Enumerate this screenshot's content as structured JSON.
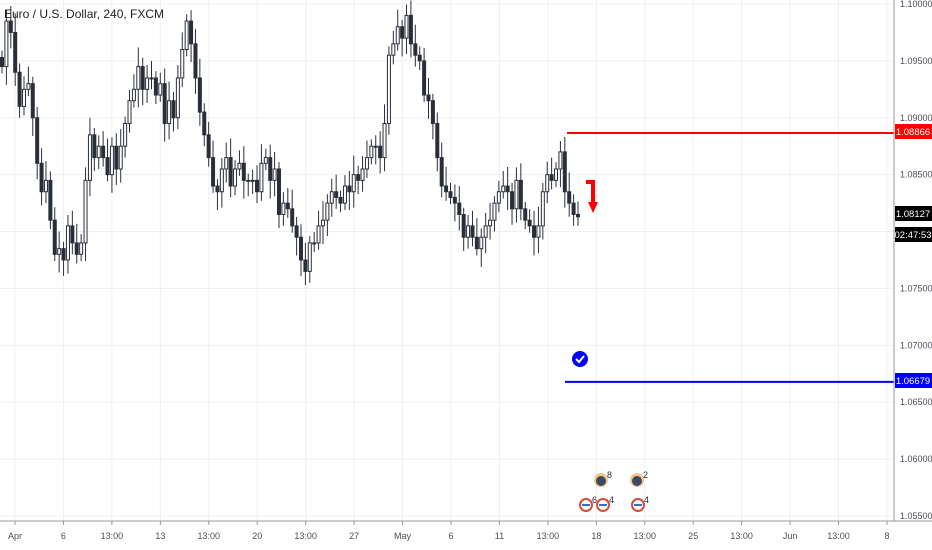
{
  "header": {
    "title": "Euro / U.S. Dollar, 240, FXCM"
  },
  "colors": {
    "candle": "#2a2e39",
    "grid": "#eef0f3",
    "axis_line": "#9598a1",
    "sell_line": "#ff0000",
    "buy_line": "#0000ff",
    "current_price_bg": "#000000"
  },
  "chart_data": {
    "type": "candlestick",
    "symbol": "Euro / U.S. Dollar",
    "interval": "240",
    "source": "FXCM",
    "y_ticks": [
      "1.10000",
      "1.09500",
      "1.09000",
      "1.08500",
      "1.08000",
      "1.07500",
      "1.07000",
      "1.06500",
      "1.06000",
      "1.05500"
    ],
    "ylim": [
      1.055,
      1.1
    ],
    "x_ticks": [
      "Apr",
      "6",
      "13:00",
      "13",
      "13:00",
      "20",
      "13:00",
      "27",
      "May",
      "6",
      "11",
      "13:00",
      "18",
      "13:00",
      "25",
      "13:00",
      "Jun",
      "13:00",
      "8"
    ],
    "price_labels": {
      "sell_level": "1.08866",
      "current_price": "1.08127",
      "countdown": "02:47:53",
      "target_level": "1.06679"
    },
    "horizontal_lines": [
      {
        "name": "sell-level",
        "price": 1.08866
      },
      {
        "name": "target-level",
        "price": 1.06679
      }
    ],
    "close_series": [
      1.0945,
      1.0985,
      1.0975,
      1.094,
      1.091,
      1.0925,
      1.093,
      1.09,
      1.086,
      1.0835,
      1.0845,
      1.081,
      1.078,
      1.0785,
      1.0775,
      1.0805,
      1.079,
      1.078,
      1.079,
      1.0845,
      1.0885,
      1.0865,
      1.0875,
      1.0865,
      1.085,
      1.0875,
      1.0855,
      1.0875,
      1.0895,
      1.0915,
      1.0925,
      1.0945,
      1.0925,
      1.0935,
      1.0935,
      1.092,
      1.093,
      1.0895,
      1.0915,
      1.09,
      1.0935,
      1.096,
      1.0985,
      1.0965,
      1.0935,
      1.0905,
      1.0885,
      1.0865,
      1.084,
      1.0835,
      1.0855,
      1.0865,
      1.084,
      1.0855,
      1.086,
      1.0845,
      1.0845,
      1.0845,
      1.0835,
      1.086,
      1.0865,
      1.0845,
      1.0855,
      1.0815,
      1.0825,
      1.082,
      1.0805,
      1.0795,
      1.0775,
      1.0765,
      1.079,
      1.079,
      1.0805,
      1.081,
      1.0825,
      1.0835,
      1.083,
      1.0825,
      1.084,
      1.0835,
      1.085,
      1.0845,
      1.0855,
      1.0865,
      1.0875,
      1.0875,
      1.0865,
      1.0895,
      1.0955,
      1.0965,
      1.098,
      1.097,
      1.099,
      1.0965,
      1.0955,
      1.095,
      1.092,
      1.0915,
      1.0895,
      1.0865,
      1.084,
      1.0835,
      1.083,
      1.0825,
      1.0815,
      1.0795,
      1.0805,
      1.0795,
      1.0785,
      1.0795,
      1.0805,
      1.081,
      1.0825,
      1.0835,
      1.084,
      1.0835,
      1.082,
      1.0845,
      1.082,
      1.081,
      1.0805,
      1.0795,
      1.0805,
      1.0835,
      1.085,
      1.0845,
      1.0855,
      1.087,
      1.0835,
      1.0825,
      1.0815,
      1.0813
    ],
    "events": [
      {
        "name": "event-1",
        "count": "8"
      },
      {
        "name": "event-2",
        "count": "2"
      },
      {
        "name": "event-3",
        "count": "6"
      },
      {
        "name": "event-4",
        "count": "4"
      },
      {
        "name": "event-5",
        "count": "4"
      }
    ]
  }
}
